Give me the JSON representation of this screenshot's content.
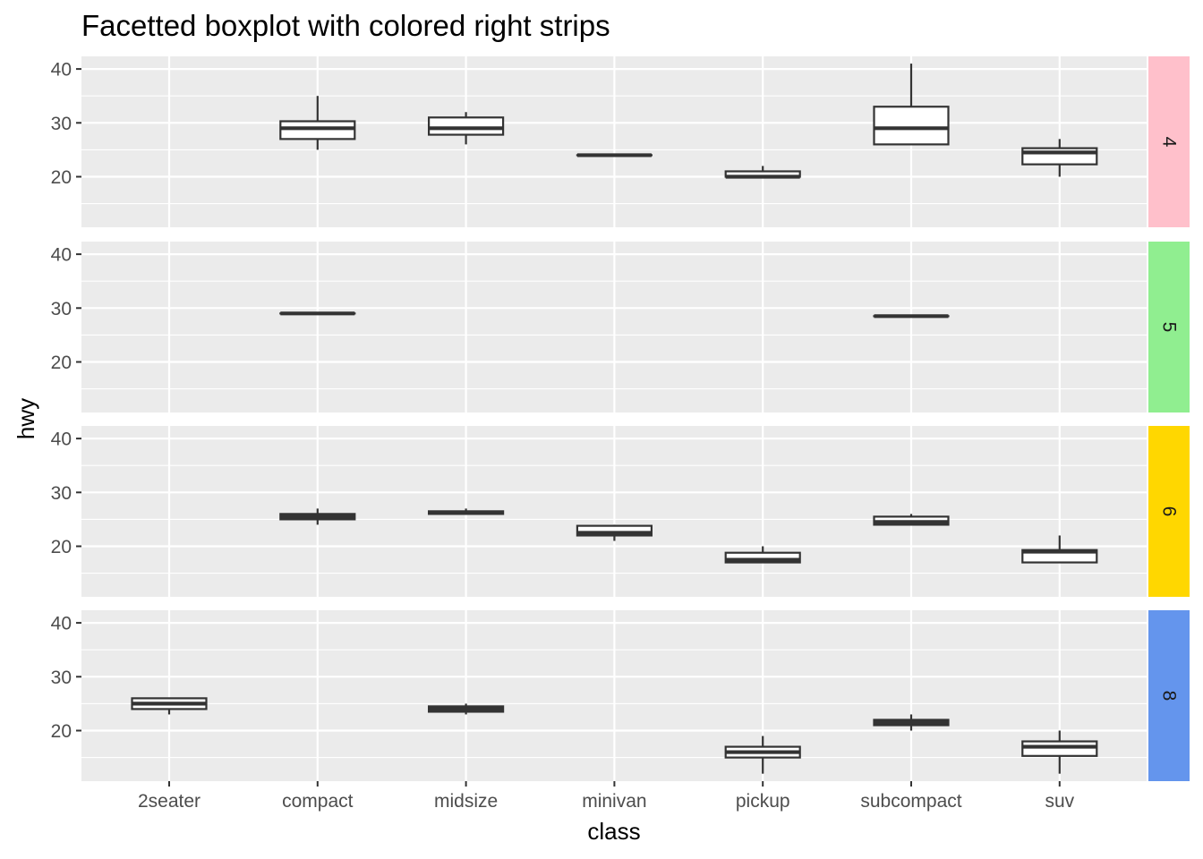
{
  "chart_data": {
    "type": "boxplot",
    "title": "Facetted boxplot with colored right strips",
    "xlabel": "class",
    "ylabel": "hwy",
    "categories": [
      "2seater",
      "compact",
      "midsize",
      "minivan",
      "pickup",
      "subcompact",
      "suv"
    ],
    "y_ticks": [
      20,
      30,
      40
    ],
    "ylim": [
      10.5,
      42.5
    ],
    "grid": true,
    "facets": [
      {
        "label": "4",
        "strip_color": "#FFC0CB",
        "boxes": [
          {
            "category": "compact",
            "lower": 25,
            "q1": 27,
            "median": 29,
            "q3": 30.3,
            "upper": 35
          },
          {
            "category": "midsize",
            "lower": 26,
            "q1": 27.8,
            "median": 29,
            "q3": 31,
            "upper": 32
          },
          {
            "category": "minivan",
            "lower": 24,
            "q1": 24,
            "median": 24,
            "q3": 24,
            "upper": 24
          },
          {
            "category": "pickup",
            "lower": 20,
            "q1": 20,
            "median": 20,
            "q3": 21,
            "upper": 22
          },
          {
            "category": "subcompact",
            "lower": 26,
            "q1": 26,
            "median": 29,
            "q3": 33,
            "upper": 41
          },
          {
            "category": "suv",
            "lower": 20,
            "q1": 22.3,
            "median": 24.5,
            "q3": 25.3,
            "upper": 27
          }
        ]
      },
      {
        "label": "5",
        "strip_color": "#90EE90",
        "boxes": [
          {
            "category": "compact",
            "lower": 29,
            "q1": 29,
            "median": 29,
            "q3": 29,
            "upper": 29
          },
          {
            "category": "subcompact",
            "lower": 28.5,
            "q1": 28.5,
            "median": 28.5,
            "q3": 28.5,
            "upper": 28.5
          }
        ]
      },
      {
        "label": "6",
        "strip_color": "#FFD700",
        "boxes": [
          {
            "category": "compact",
            "lower": 24,
            "q1": 25,
            "median": 25.5,
            "q3": 26,
            "upper": 27
          },
          {
            "category": "midsize",
            "lower": 26,
            "q1": 26,
            "median": 26.3,
            "q3": 26.5,
            "upper": 27
          },
          {
            "category": "minivan",
            "lower": 21,
            "q1": 22,
            "median": 22.5,
            "q3": 23.8,
            "upper": 24
          },
          {
            "category": "pickup",
            "lower": 17,
            "q1": 17,
            "median": 17.5,
            "q3": 18.8,
            "upper": 20
          },
          {
            "category": "subcompact",
            "lower": 24,
            "q1": 24,
            "median": 24.5,
            "q3": 25.5,
            "upper": 26
          },
          {
            "category": "suv",
            "lower": 17,
            "q1": 17,
            "median": 19,
            "q3": 19.3,
            "upper": 22
          }
        ]
      },
      {
        "label": "8",
        "strip_color": "#6495ED",
        "boxes": [
          {
            "category": "2seater",
            "lower": 23,
            "q1": 24,
            "median": 25,
            "q3": 26,
            "upper": 26
          },
          {
            "category": "midsize",
            "lower": 23,
            "q1": 23.5,
            "median": 24,
            "q3": 24.5,
            "upper": 25
          },
          {
            "category": "pickup",
            "lower": 12,
            "q1": 15,
            "median": 16,
            "q3": 17,
            "upper": 19
          },
          {
            "category": "subcompact",
            "lower": 20,
            "q1": 21,
            "median": 21.5,
            "q3": 22,
            "upper": 23
          },
          {
            "category": "suv",
            "lower": 12,
            "q1": 15.3,
            "median": 17,
            "q3": 18,
            "upper": 20
          }
        ]
      }
    ]
  }
}
